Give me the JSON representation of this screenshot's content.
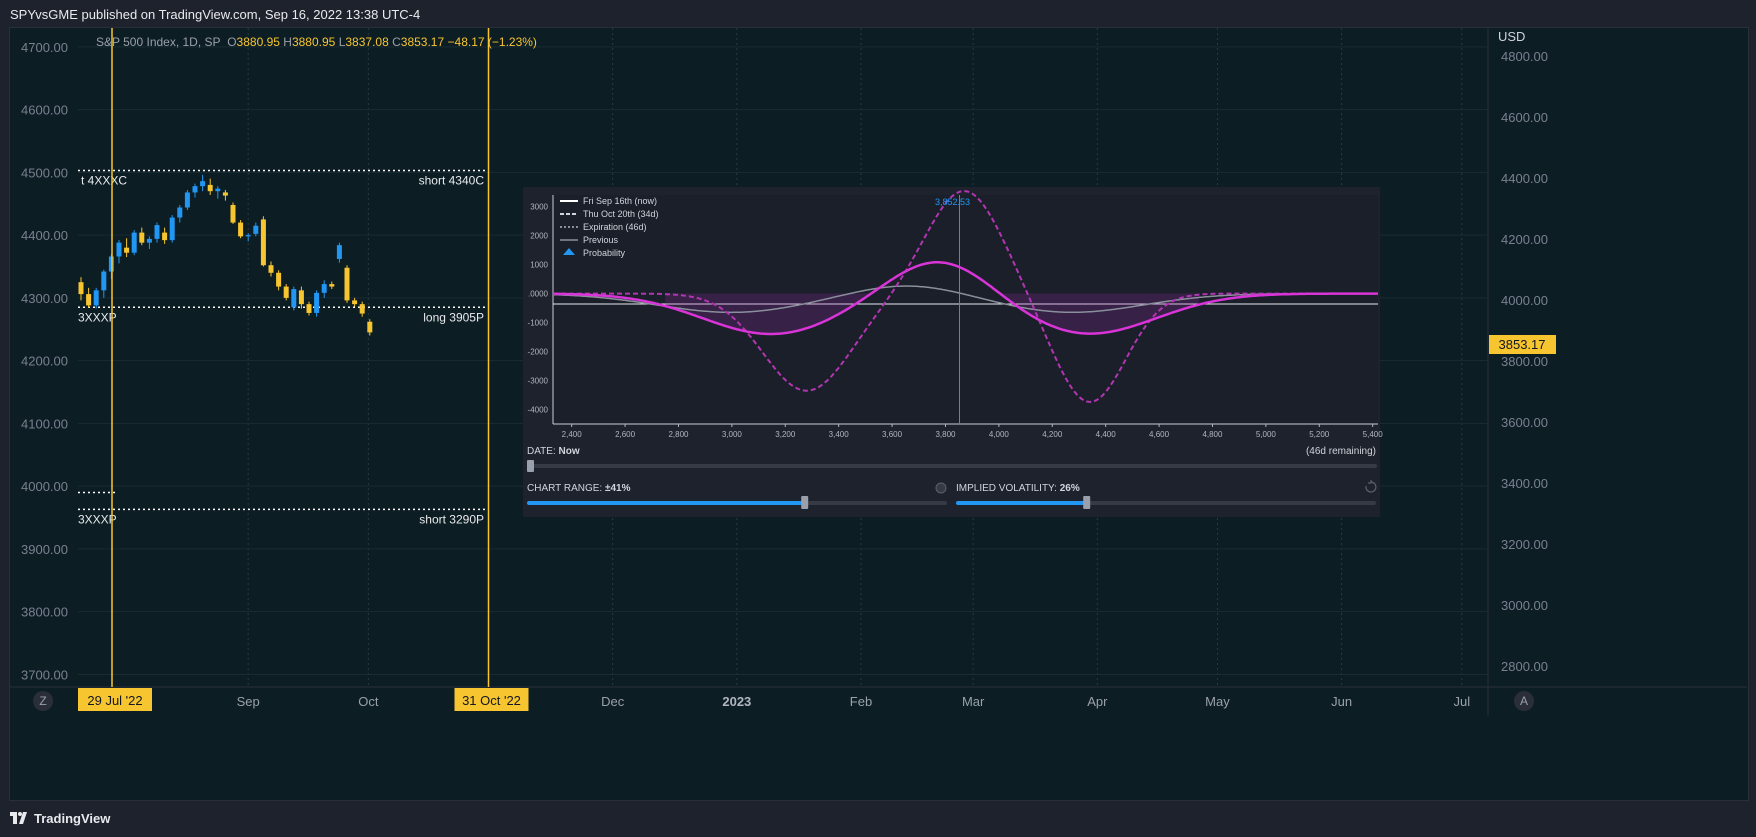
{
  "publish_note": "SPYvsGME published on TradingView.com, Sep 16, 2022 13:38 UTC-4",
  "brand": "TradingView",
  "symbol_legend": {
    "name": "S&P 500 Index, 1D, SP",
    "o_label": "O",
    "o": "3880.95",
    "h_label": "H",
    "h": "3880.95",
    "l_label": "L",
    "l": "3837.08",
    "c_label": "C",
    "c": "3853.17",
    "change": "−48.17 (−1.23%)"
  },
  "colors": {
    "up": "#2196f3",
    "down": "#f7c530",
    "accent": "#f7c530",
    "pnl": "#d834d8",
    "bg": "#0c1d24"
  },
  "buttons": {
    "zoom": "Z",
    "auto": "A",
    "currency": "USD"
  },
  "price_badge": "3853.17",
  "markers": [
    {
      "label": "29 Jul '22",
      "date": "2022-07-29"
    },
    {
      "label": "31 Oct '22",
      "date": "2022-10-31"
    }
  ],
  "levels": [
    {
      "left": "t 4XXXC",
      "right": "short 4340C",
      "price": 4503
    },
    {
      "left": "3XXXP",
      "right": "long 3905P",
      "price": 4285
    },
    {
      "left": "",
      "right": "",
      "price": 3990
    },
    {
      "left": "3XXXP",
      "right": "short 3290P",
      "price": 3963
    }
  ],
  "chart_data": [
    {
      "type": "candlestick",
      "title": "S&P 500 Index, 1D, SP",
      "x_ticks": [
        "Sep",
        "Oct",
        "Dec",
        "2023",
        "Feb",
        "Mar",
        "Apr",
        "May",
        "Jun",
        "Jul"
      ],
      "y_left_ticks": [
        "4700.00",
        "4600.00",
        "4500.00",
        "4400.00",
        "4300.00",
        "4200.00",
        "4100.00",
        "4000.00",
        "3900.00",
        "3800.00",
        "3700.00"
      ],
      "y_right_ticks": [
        "4800.00",
        "4600.00",
        "4400.00",
        "4200.00",
        "4000.00",
        "3800.00",
        "3600.00",
        "3400.00",
        "3200.00",
        "3000.00",
        "2800.00"
      ],
      "ylim": [
        3680,
        4730
      ],
      "candles": [
        [
          4325,
          4333,
          4296,
          4306
        ],
        [
          4306,
          4316,
          4284,
          4288
        ],
        [
          4288,
          4316,
          4283,
          4312
        ],
        [
          4312,
          4345,
          4300,
          4342
        ],
        [
          4342,
          4370,
          4330,
          4366
        ],
        [
          4366,
          4392,
          4355,
          4388
        ],
        [
          4380,
          4395,
          4365,
          4372
        ],
        [
          4372,
          4408,
          4368,
          4404
        ],
        [
          4404,
          4412,
          4384,
          4388
        ],
        [
          4388,
          4398,
          4378,
          4394
        ],
        [
          4394,
          4420,
          4388,
          4416
        ],
        [
          4404,
          4412,
          4386,
          4392
        ],
        [
          4392,
          4432,
          4388,
          4428
        ],
        [
          4428,
          4448,
          4420,
          4444
        ],
        [
          4444,
          4472,
          4440,
          4468
        ],
        [
          4468,
          4482,
          4460,
          4478
        ],
        [
          4478,
          4496,
          4470,
          4486
        ],
        [
          4480,
          4490,
          4464,
          4470
        ],
        [
          4470,
          4478,
          4458,
          4474
        ],
        [
          4468,
          4472,
          4455,
          4463
        ],
        [
          4448,
          4452,
          4418,
          4420
        ],
        [
          4420,
          4424,
          4395,
          4398
        ],
        [
          4398,
          4403,
          4390,
          4400
        ],
        [
          4402,
          4420,
          4398,
          4415
        ],
        [
          4425,
          4430,
          4350,
          4352
        ],
        [
          4352,
          4358,
          4334,
          4340
        ],
        [
          4340,
          4344,
          4312,
          4318
        ],
        [
          4318,
          4322,
          4296,
          4300
        ],
        [
          4285,
          4318,
          4280,
          4314
        ],
        [
          4312,
          4318,
          4283,
          4290
        ],
        [
          4290,
          4294,
          4272,
          4276
        ],
        [
          4276,
          4312,
          4270,
          4308
        ],
        [
          4308,
          4328,
          4300,
          4322
        ],
        [
          4322,
          4326,
          4314,
          4318
        ],
        [
          4362,
          4388,
          4356,
          4384
        ],
        [
          4348,
          4352,
          4292,
          4296
        ],
        [
          4296,
          4300,
          4286,
          4290
        ],
        [
          4290,
          4294,
          4270,
          4275
        ],
        [
          4262,
          4266,
          4240,
          4245
        ]
      ]
    },
    {
      "type": "line",
      "title": "",
      "x_ticks": [
        "2,400",
        "2,600",
        "2,800",
        "3,000",
        "3,200",
        "3,400",
        "3,600",
        "3,800",
        "4,000",
        "4,200",
        "4,400",
        "4,600",
        "4,800",
        "5,000",
        "5,200",
        "5,400"
      ],
      "y_ticks": [
        "3000",
        "2000",
        "1000",
        ".0000",
        "-1000",
        "-2000",
        "-3000",
        "-4000"
      ],
      "xlim": [
        2330,
        5420
      ],
      "ylim": [
        -4500,
        3400
      ],
      "current_price_label": "3,852.53",
      "current_price": 3852.53,
      "series": [
        {
          "name": "Fri Sep 16th (now)"
        },
        {
          "name": "Thu Oct 20th (34d)"
        },
        {
          "name": "Expiration (46d)"
        },
        {
          "name": "Previous"
        },
        {
          "name": "Probability"
        }
      ]
    }
  ],
  "panel": {
    "date_label": "DATE:",
    "date_value": "Now",
    "remaining": "(46d remaining)",
    "range_label": "CHART RANGE:",
    "range_value": "±41%",
    "range_fill": 0.66,
    "iv_label": "IMPLIED VOLATILITY:",
    "iv_value": "26%",
    "iv_fill": 0.31
  }
}
